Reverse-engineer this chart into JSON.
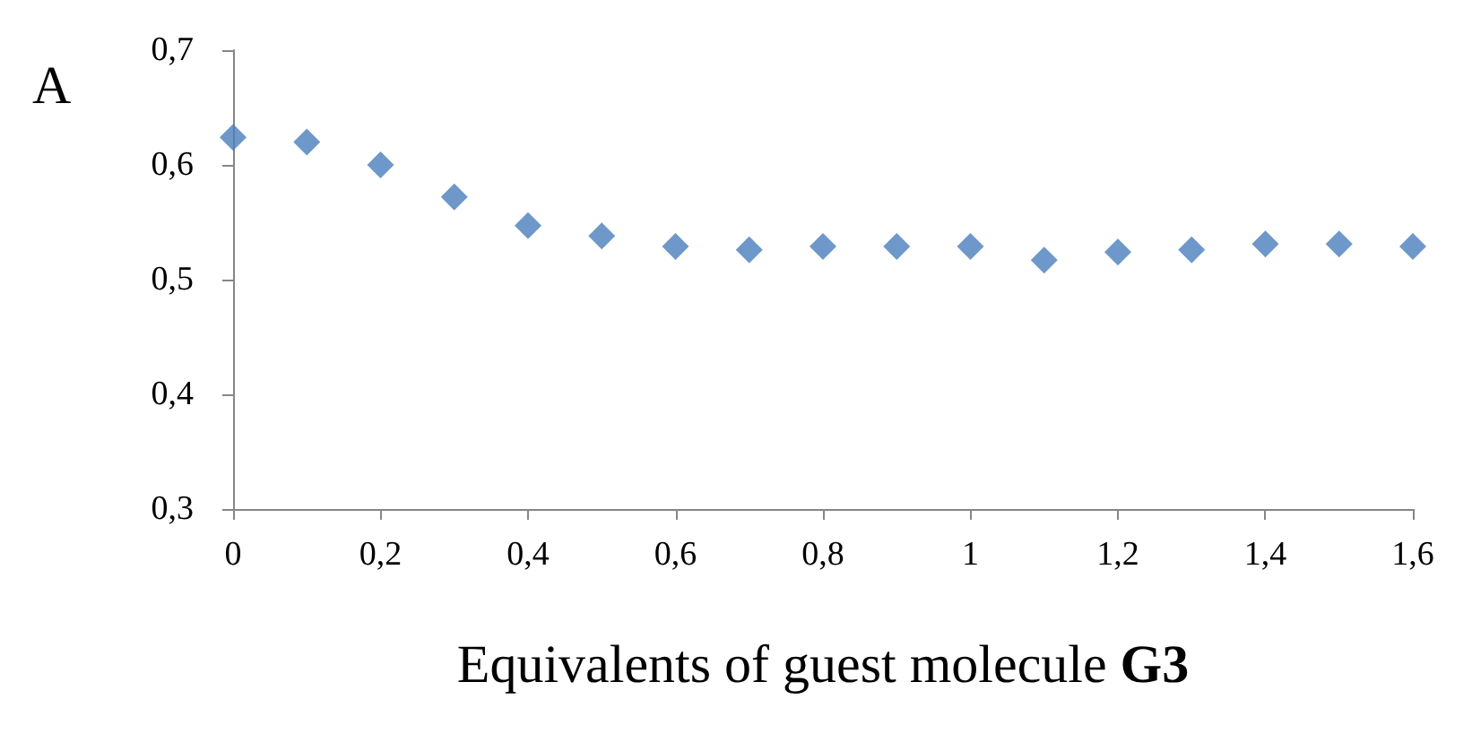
{
  "chart_data": {
    "type": "scatter",
    "xlabel": "Equivalents of guest molecule G3",
    "annotations": [
      "A"
    ],
    "x": [
      0,
      0.1,
      0.2,
      0.3,
      0.4,
      0.5,
      0.6,
      0.7,
      0.8,
      0.9,
      1,
      1.1,
      1.2,
      1.3,
      1.4,
      1.5,
      1.6
    ],
    "series": [
      {
        "color": "#4a7ebb",
        "values": [
          0.624,
          0.62,
          0.6,
          0.572,
          0.547,
          0.538,
          0.529,
          0.526,
          0.529,
          0.529,
          0.529,
          0.517,
          0.524,
          0.526,
          0.531,
          0.531,
          0.529
        ]
      }
    ],
    "marker": "diamond",
    "grid": false,
    "xlim": [
      0,
      1.6
    ],
    "xticks": [
      0,
      {
        "value": 0.2,
        "label": "0,2"
      },
      {
        "value": 0.4,
        "label": "0,4"
      },
      {
        "value": 0.6,
        "label": "0,6"
      },
      {
        "value": 0.8,
        "label": "0,8"
      },
      1,
      {
        "value": 1.2,
        "label": "1,2"
      },
      {
        "value": 1.4,
        "label": "1,4"
      },
      {
        "value": 1.6,
        "label": "1,6"
      }
    ],
    "ylim": [
      0.3,
      0.7
    ],
    "yticks": [
      {
        "value": 0.3,
        "label": "0,3"
      },
      {
        "value": 0.4,
        "label": "0,4"
      },
      {
        "value": 0.5,
        "label": "0,5"
      },
      {
        "value": 0.6,
        "label": "0,6"
      },
      {
        "value": 0.7,
        "label": "0,7"
      }
    ]
  }
}
